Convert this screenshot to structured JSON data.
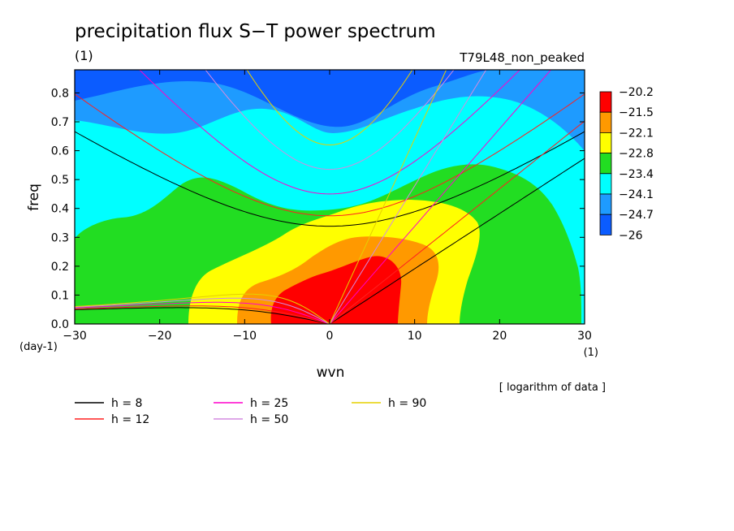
{
  "chart_data": {
    "type": "heatmap",
    "title": "precipitation flux S−T power spectrum",
    "title_units": "(1)",
    "subtitle_right": "T79L48_non_peaked",
    "xlabel": "wvn",
    "ylabel": "freq",
    "x_units": "(1)",
    "y_units": "(day-1)",
    "xlim": [
      -30,
      30
    ],
    "ylim": [
      0,
      0.88
    ],
    "x_ticks": [
      {
        "v": -30,
        "label": "−30"
      },
      {
        "v": -20,
        "label": "−20"
      },
      {
        "v": -10,
        "label": "−10"
      },
      {
        "v": 0,
        "label": "0"
      },
      {
        "v": 10,
        "label": "10"
      },
      {
        "v": 20,
        "label": "20"
      },
      {
        "v": 30,
        "label": "30"
      }
    ],
    "y_ticks": [
      {
        "v": 0,
        "label": "0.0"
      },
      {
        "v": 0.1,
        "label": "0.1"
      },
      {
        "v": 0.2,
        "label": "0.2"
      },
      {
        "v": 0.3,
        "label": "0.3"
      },
      {
        "v": 0.4,
        "label": "0.4"
      },
      {
        "v": 0.5,
        "label": "0.5"
      },
      {
        "v": 0.6,
        "label": "0.6"
      },
      {
        "v": 0.7,
        "label": "0.7"
      },
      {
        "v": 0.8,
        "label": "0.8"
      }
    ],
    "note": "[ logarithm of data ]",
    "colorbar": {
      "labels": [
        "−20.2",
        "−21.5",
        "−22.1",
        "−22.8",
        "−23.4",
        "−24.1",
        "−24.7",
        "−26"
      ],
      "colors": [
        "#ff0000",
        "#ff9900",
        "#ffff00",
        "#22dd22",
        "#00ffff",
        "#1e9bff",
        "#0b5cff"
      ]
    },
    "fill_colors": {
      "l1": "#0b5cff",
      "l2": "#1e9bff",
      "l3": "#00ffff",
      "l4": "#22dd22",
      "l5": "#ffff00",
      "l6": "#ff9900",
      "l7": "#ff0000"
    },
    "curves": [
      {
        "label": "h =  8",
        "h": 8,
        "color": "#000000"
      },
      {
        "label": "h = 12",
        "h": 12,
        "color": "#ff2020"
      },
      {
        "label": "h = 25",
        "h": 25,
        "color": "#ff00cc"
      },
      {
        "label": "h = 50",
        "h": 50,
        "color": "#d38be0"
      },
      {
        "label": "h = 90",
        "h": 90,
        "color": "#e6d000"
      }
    ]
  }
}
